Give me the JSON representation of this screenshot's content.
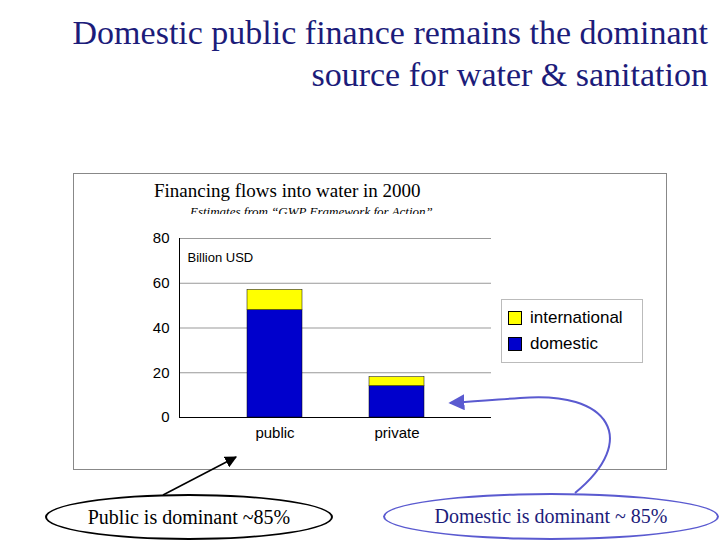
{
  "slide_title": "Domestic public finance remains the dominant source for water & sanitation",
  "chart_data": {
    "type": "bar",
    "title": "Financing flows into water in 2000",
    "subtitle": "Estimates from “GWP Framework for Action”",
    "y_label": "Billion USD",
    "categories": [
      "public",
      "private"
    ],
    "series": [
      {
        "name": "domestic",
        "color": "#0000cc",
        "values": [
          48,
          14
        ]
      },
      {
        "name": "international",
        "color": "#ffff00",
        "values": [
          9,
          4
        ]
      }
    ],
    "stacked": true,
    "ylim": [
      0,
      80
    ],
    "yticks": [
      0,
      20,
      40,
      60,
      80
    ],
    "grid": true,
    "legend": "right",
    "annotations": [
      "Public is dominant ~85%",
      "Domestic is dominant ~ 85%"
    ]
  }
}
